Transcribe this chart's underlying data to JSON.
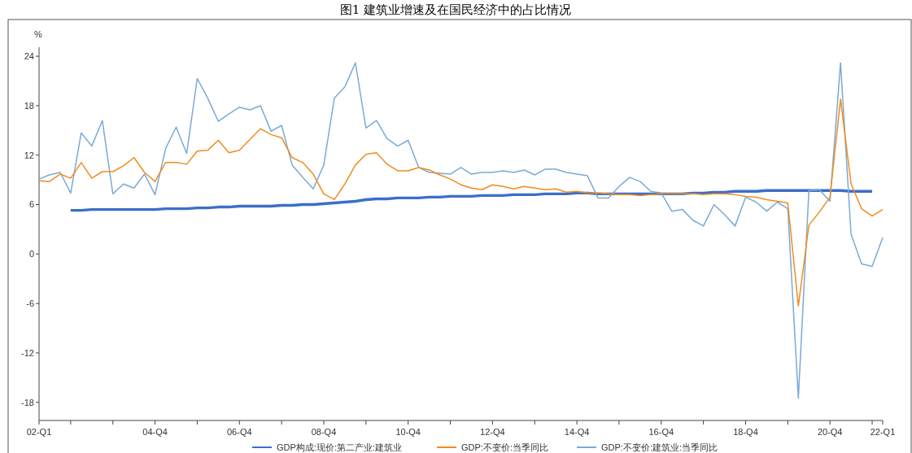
{
  "chart_data": {
    "type": "line",
    "title": "图1  建筑业增速及在国民经济中的占比情况",
    "ylabel": "%",
    "categories": [
      "02-Q1",
      null,
      null,
      null,
      null,
      null,
      null,
      null,
      null,
      null,
      null,
      "04-Q4",
      null,
      null,
      null,
      null,
      null,
      null,
      null,
      "06-Q4",
      null,
      null,
      null,
      null,
      null,
      null,
      null,
      "08-Q4",
      null,
      null,
      null,
      null,
      null,
      null,
      null,
      "10-Q4",
      null,
      null,
      null,
      null,
      null,
      null,
      null,
      "12-Q4",
      null,
      null,
      null,
      null,
      null,
      null,
      null,
      "14-Q4",
      null,
      null,
      null,
      null,
      null,
      null,
      null,
      "16-Q4",
      null,
      null,
      null,
      null,
      null,
      null,
      null,
      "18-Q4",
      null,
      null,
      null,
      null,
      null,
      null,
      null,
      "20-Q4",
      null,
      null,
      null,
      null,
      "22-Q1"
    ],
    "series": [
      {
        "name": "GDP构成:现价:第二产业:建筑业",
        "color": "#3a6fc8",
        "values": [
          null,
          null,
          null,
          5.3,
          5.3,
          5.4,
          5.4,
          5.4,
          5.4,
          5.4,
          5.4,
          5.4,
          5.5,
          5.5,
          5.5,
          5.6,
          5.6,
          5.7,
          5.7,
          5.8,
          5.8,
          5.8,
          5.8,
          5.9,
          5.9,
          6.0,
          6.0,
          6.1,
          6.2,
          6.3,
          6.4,
          6.6,
          6.7,
          6.7,
          6.8,
          6.8,
          6.8,
          6.9,
          6.9,
          7.0,
          7.0,
          7.0,
          7.1,
          7.1,
          7.1,
          7.2,
          7.2,
          7.2,
          7.3,
          7.3,
          7.3,
          7.4,
          7.4,
          7.3,
          7.3,
          7.3,
          7.3,
          7.3,
          7.3,
          7.3,
          7.3,
          7.3,
          7.4,
          7.4,
          7.5,
          7.5,
          7.6,
          7.6,
          7.6,
          7.7,
          7.7,
          7.7,
          7.7,
          7.7,
          7.7,
          7.7,
          7.7,
          7.6,
          7.6,
          7.6,
          null
        ]
      },
      {
        "name": "GDP:不变价:当季同比",
        "color": "#f08c1e",
        "values": [
          8.9,
          8.8,
          9.7,
          9.2,
          11.1,
          9.2,
          10.0,
          10.0,
          10.7,
          11.7,
          9.9,
          8.8,
          11.1,
          11.1,
          10.9,
          12.5,
          12.6,
          13.8,
          12.3,
          12.6,
          13.9,
          15.2,
          14.5,
          14.1,
          11.7,
          11.1,
          9.7,
          7.3,
          6.6,
          8.5,
          10.8,
          12.1,
          12.3,
          10.9,
          10.1,
          10.1,
          10.5,
          10.2,
          9.6,
          9.1,
          8.4,
          8.0,
          7.8,
          8.4,
          8.2,
          7.9,
          8.2,
          8.0,
          7.8,
          7.9,
          7.5,
          7.6,
          7.4,
          7.4,
          7.3,
          7.2,
          7.2,
          7.1,
          7.2,
          7.3,
          7.3,
          7.3,
          7.3,
          7.2,
          7.3,
          7.3,
          7.2,
          7.0,
          6.9,
          6.6,
          6.4,
          6.2,
          -6.3,
          3.5,
          5.1,
          6.9,
          18.8,
          8.5,
          5.5,
          4.6,
          5.4
        ]
      },
      {
        "name": "GDP:不变价:建筑业:当季同比",
        "color": "#7aaad6",
        "values": [
          9.1,
          9.6,
          9.9,
          7.4,
          14.7,
          13.1,
          16.2,
          7.3,
          8.5,
          8.0,
          9.7,
          7.2,
          12.8,
          15.4,
          12.2,
          21.3,
          18.9,
          16.1,
          17.0,
          17.8,
          17.5,
          18.0,
          14.9,
          15.6,
          10.8,
          9.3,
          7.9,
          10.8,
          18.9,
          20.3,
          23.2,
          15.3,
          16.2,
          14.0,
          13.1,
          13.8,
          10.5,
          9.9,
          9.8,
          9.7,
          10.5,
          9.7,
          9.9,
          9.9,
          10.1,
          9.9,
          10.2,
          9.6,
          10.3,
          10.3,
          9.9,
          9.7,
          9.5,
          6.8,
          6.8,
          8.2,
          9.3,
          8.8,
          7.6,
          7.4,
          5.2,
          5.4,
          4.1,
          3.4,
          6.0,
          4.8,
          3.4,
          6.9,
          6.3,
          5.2,
          6.3,
          5.5,
          -17.5,
          7.7,
          7.8,
          6.4,
          23.2,
          2.4,
          -1.2,
          -1.5,
          2.0
        ]
      }
    ],
    "ylim": [
      -20.2,
      25.1
    ],
    "yticks": [
      -18,
      -12,
      -6,
      0,
      6,
      12,
      18,
      24
    ],
    "grid": false,
    "legend": "bottom"
  }
}
